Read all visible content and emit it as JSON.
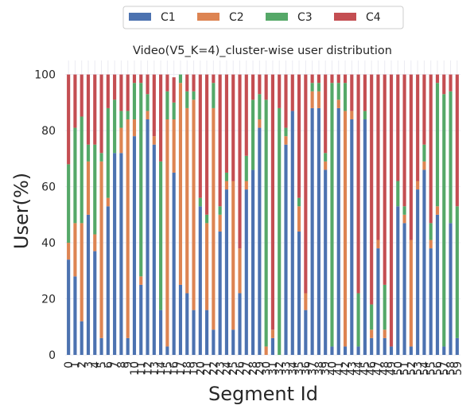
{
  "chart_data": {
    "type": "bar",
    "stacked": true,
    "title": "Video(V5_K=4)_cluster-wise user distribution",
    "xlabel": "Segment Id",
    "ylabel": "User(%)",
    "ylim": [
      0,
      105
    ],
    "yticks": [
      0,
      20,
      40,
      60,
      80,
      100
    ],
    "grid": true,
    "legend_position": "top-center",
    "categories": [
      "0",
      "1",
      "2",
      "3",
      "4",
      "5",
      "6",
      "7",
      "8",
      "9",
      "10",
      "11",
      "12",
      "13",
      "14",
      "15",
      "16",
      "17",
      "18",
      "19",
      "20",
      "21",
      "22",
      "23",
      "24",
      "25",
      "26",
      "27",
      "28",
      "29",
      "30",
      "31",
      "32",
      "33",
      "34",
      "35",
      "36",
      "37",
      "38",
      "39",
      "40",
      "41",
      "42",
      "43",
      "44",
      "45",
      "46",
      "47",
      "48",
      "49",
      "50",
      "51",
      "52",
      "53",
      "54",
      "55",
      "56",
      "57",
      "58",
      "59"
    ],
    "series": [
      {
        "name": "C1",
        "color": "#4c72b0",
        "values": [
          34,
          28,
          12,
          50,
          37,
          6,
          53,
          72,
          72,
          6,
          78,
          25,
          84,
          75,
          16,
          3,
          65,
          25,
          22,
          16,
          53,
          16,
          9,
          44,
          59,
          9,
          22,
          59,
          66,
          81,
          0,
          6,
          0,
          75,
          87,
          44,
          16,
          88,
          88,
          66,
          3,
          88,
          3,
          84,
          3,
          84,
          6,
          38,
          6,
          3,
          53,
          47,
          3,
          59,
          66,
          38,
          50,
          3,
          47,
          6
        ]
      },
      {
        "name": "C2",
        "color": "#dd8452",
        "values": [
          6,
          19,
          35,
          19,
          6,
          63,
          3,
          0,
          9,
          78,
          6,
          3,
          3,
          3,
          0,
          81,
          19,
          72,
          66,
          75,
          0,
          31,
          79,
          6,
          3,
          53,
          16,
          3,
          0,
          3,
          3,
          3,
          0,
          3,
          0,
          9,
          6,
          6,
          6,
          3,
          0,
          3,
          84,
          3,
          0,
          0,
          3,
          3,
          3,
          0,
          0,
          3,
          38,
          3,
          3,
          3,
          3,
          0,
          0,
          0
        ]
      },
      {
        "name": "C3",
        "color": "#55a868",
        "values": [
          28,
          34,
          38,
          6,
          32,
          3,
          32,
          19,
          6,
          3,
          13,
          69,
          6,
          0,
          53,
          10,
          6,
          3,
          6,
          3,
          3,
          3,
          9,
          3,
          3,
          0,
          0,
          9,
          25,
          9,
          88,
          0,
          88,
          3,
          0,
          3,
          0,
          3,
          3,
          3,
          94,
          6,
          10,
          0,
          19,
          3,
          9,
          0,
          16,
          0,
          9,
          3,
          0,
          0,
          6,
          6,
          44,
          90,
          47,
          47
        ]
      },
      {
        "name": "C4",
        "color": "#c44e52",
        "values": [
          32,
          19,
          15,
          25,
          25,
          28,
          12,
          9,
          13,
          13,
          3,
          3,
          7,
          22,
          31,
          6,
          9,
          0,
          6,
          6,
          44,
          50,
          3,
          47,
          35,
          38,
          62,
          29,
          9,
          7,
          9,
          91,
          12,
          19,
          13,
          44,
          78,
          3,
          3,
          28,
          3,
          3,
          3,
          13,
          78,
          13,
          82,
          59,
          75,
          97,
          38,
          47,
          59,
          38,
          25,
          53,
          3,
          7,
          6,
          47
        ]
      }
    ]
  }
}
